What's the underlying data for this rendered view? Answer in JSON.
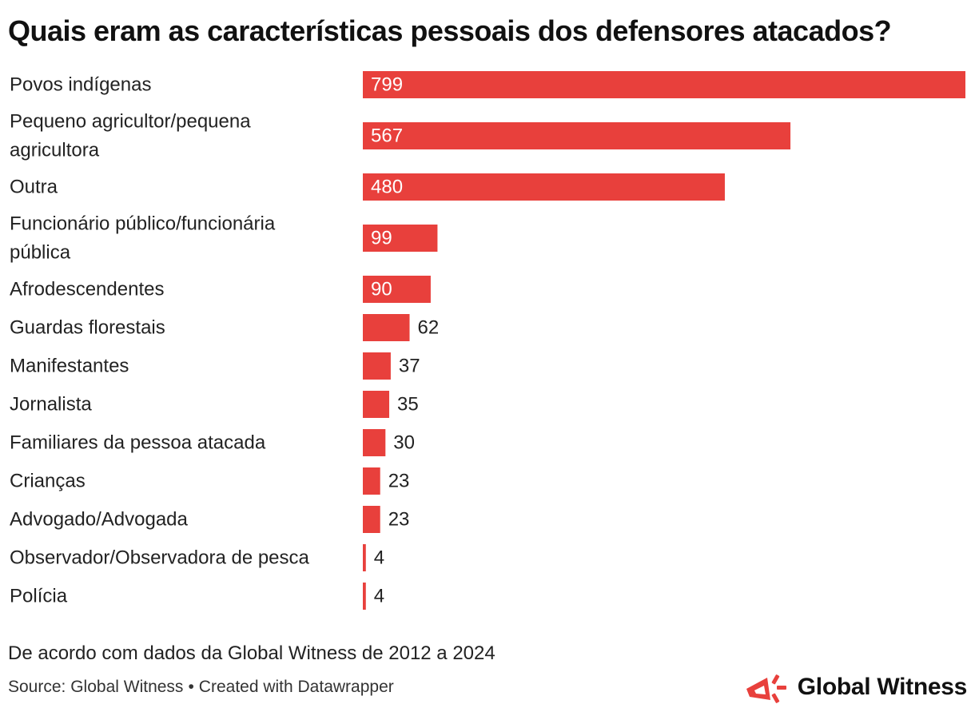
{
  "title": "Quais eram as características pessoais dos defensores atacados?",
  "note": "De acordo com dados da Global Witness de 2012 a 2024",
  "footer": {
    "source": "Source: Global Witness",
    "separator": "•",
    "created": "Created with Datawrapper"
  },
  "logo": {
    "text": "Global Witness",
    "icon": "megaphone-icon"
  },
  "colors": {
    "bar": "#e8403c",
    "label_inside": "#ffffff",
    "label_outside": "#222222"
  },
  "chart_data": {
    "type": "bar",
    "orientation": "horizontal",
    "categories": [
      "Povos indígenas",
      "Pequeno agricultor/pequena agricultora",
      "Outra",
      "Funcionário público/funcionária pública",
      "Afrodescendentes",
      "Guardas florestais",
      "Manifestantes",
      "Jornalista",
      "Familiares da pessoa atacada",
      "Crianças",
      "Advogado/Advogada",
      "Observador/Observadora de pesca",
      "Polícia"
    ],
    "values": [
      799,
      567,
      480,
      99,
      90,
      62,
      37,
      35,
      30,
      23,
      23,
      4,
      4
    ],
    "xlim": [
      0,
      799
    ],
    "title": "Quais eram as características pessoais dos defensores atacados?",
    "xlabel": "",
    "ylabel": "",
    "grid": false,
    "legend": "none"
  }
}
